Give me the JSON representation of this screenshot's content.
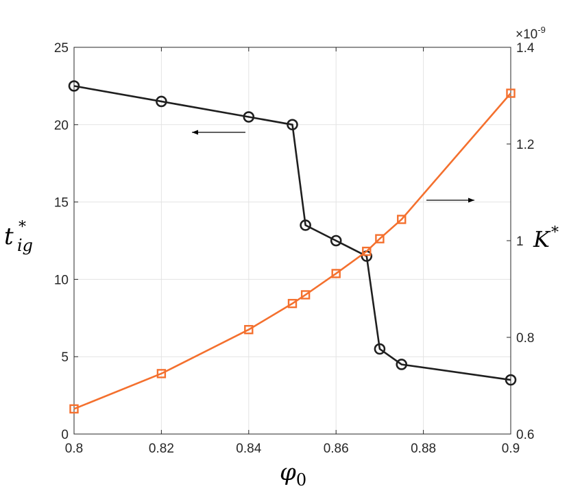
{
  "chart_data": {
    "type": "line",
    "xlabel": "φ",
    "xlabel_sub": "0",
    "ylabel_left": "t",
    "ylabel_left_sup": "*",
    "ylabel_left_sub": "ig",
    "ylabel_right": "K",
    "ylabel_right_sup": "*",
    "right_exponent": "×10",
    "right_exponent_power": "-9",
    "xlim": [
      0.8,
      0.9
    ],
    "ylim_left": [
      0,
      25
    ],
    "ylim_right": [
      0.6,
      1.4
    ],
    "grid": true,
    "x_ticks": [
      "0.8",
      "0.82",
      "0.84",
      "0.86",
      "0.88",
      "0.9"
    ],
    "y_left_ticks": [
      "0",
      "5",
      "10",
      "15",
      "20",
      "25"
    ],
    "y_right_ticks": [
      "0.6",
      "0.8",
      "1",
      "1.2",
      "1.4"
    ],
    "series": [
      {
        "axis": "left",
        "color": "#1f1f1f",
        "marker": "circle",
        "x": [
          0.8,
          0.82,
          0.84,
          0.85,
          0.853,
          0.86,
          0.867,
          0.87,
          0.875,
          0.9
        ],
        "y": [
          22.5,
          21.5,
          20.5,
          20.0,
          13.5,
          12.5,
          11.5,
          5.5,
          4.5,
          3.5
        ]
      },
      {
        "axis": "right",
        "color": "#f4702e",
        "marker": "square",
        "x": [
          0.8,
          0.82,
          0.84,
          0.85,
          0.853,
          0.86,
          0.867,
          0.87,
          0.875,
          0.9
        ],
        "y": [
          0.652,
          0.725,
          0.816,
          0.87,
          0.888,
          0.932,
          0.978,
          1.004,
          1.044,
          1.305
        ]
      }
    ],
    "annotations": [
      {
        "type": "arrow",
        "direction": "left",
        "points_to": "left-axis"
      },
      {
        "type": "arrow",
        "direction": "right",
        "points_to": "right-axis"
      }
    ]
  }
}
